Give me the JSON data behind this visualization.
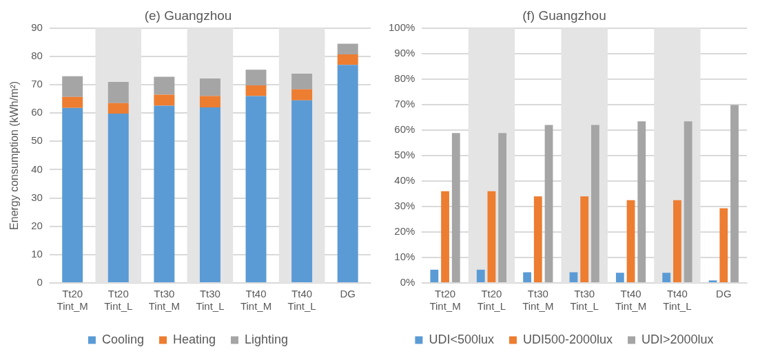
{
  "chart_data": [
    {
      "type": "bar",
      "title": "(e) Guangzhou",
      "ylabel": "Energy consumption (kWh/m²)",
      "stacked": true,
      "categories": [
        "Tt20 Tint_M",
        "Tt20 Tint_L",
        "Tt30 Tint_M",
        "Tt30 Tint_L",
        "Tt40 Tint_M",
        "Tt40 Tint_L",
        "DG"
      ],
      "series": [
        {
          "name": "Cooling",
          "color": "#5b9bd5",
          "values": [
            61.8,
            59.8,
            62.6,
            62.0,
            66.0,
            64.5,
            77.0
          ]
        },
        {
          "name": "Heating",
          "color": "#ed7d31",
          "values": [
            3.9,
            3.7,
            3.9,
            4.0,
            3.8,
            3.9,
            3.7
          ]
        },
        {
          "name": "Lighting",
          "color": "#a5a5a5",
          "values": [
            7.3,
            7.5,
            6.3,
            6.2,
            5.5,
            5.5,
            3.8
          ]
        }
      ],
      "ylim": [
        0,
        90
      ],
      "yticks": [
        0,
        10,
        20,
        30,
        40,
        50,
        60,
        70,
        80,
        90
      ],
      "grid": "y",
      "legend": "bottom",
      "bands": [
        {
          "axis": "x",
          "from": "Tt20 Tint_L",
          "to": "Tt20 Tint_L",
          "color": "#e4e4e4"
        },
        {
          "axis": "x",
          "from": "Tt30 Tint_L",
          "to": "Tt30 Tint_L",
          "color": "#e4e4e4"
        },
        {
          "axis": "x",
          "from": "Tt40 Tint_L",
          "to": "Tt40 Tint_L",
          "color": "#e4e4e4"
        }
      ]
    },
    {
      "type": "bar",
      "title": "(f) Guangzhou",
      "categories": [
        "Tt20 Tint_M",
        "Tt20 Tint_L",
        "Tt30 Tint_M",
        "Tt30 Tint_L",
        "Tt40 Tint_M",
        "Tt40 Tint_L",
        "DG"
      ],
      "series": [
        {
          "name": "UDI<500lux",
          "color": "#5b9bd5",
          "values": [
            5.2,
            5.2,
            4.2,
            4.2,
            4.0,
            4.0,
            1.0
          ]
        },
        {
          "name": "UDI500-2000lux",
          "color": "#ed7d31",
          "values": [
            36,
            36,
            34,
            34,
            32.5,
            32.5,
            29.3
          ]
        },
        {
          "name": "UDI>2000lux",
          "color": "#a5a5a5",
          "values": [
            58.8,
            58.8,
            62,
            62,
            63.4,
            63.4,
            69.8
          ]
        }
      ],
      "ylim": [
        0,
        100
      ],
      "yticks": [
        {
          "value": 0,
          "label": "0%"
        },
        {
          "value": 10,
          "label": "10%"
        },
        {
          "value": 20,
          "label": "20%"
        },
        {
          "value": 30,
          "label": "30%"
        },
        {
          "value": 40,
          "label": "40%"
        },
        {
          "value": 50,
          "label": "50%"
        },
        {
          "value": 60,
          "label": "60%"
        },
        {
          "value": 70,
          "label": "70%"
        },
        {
          "value": 80,
          "label": "80%"
        },
        {
          "value": 90,
          "label": "90%"
        },
        {
          "value": 100,
          "label": "100%"
        }
      ],
      "grid": "y",
      "legend": "bottom",
      "bands": [
        {
          "axis": "x",
          "from": "Tt20 Tint_L",
          "to": "Tt20 Tint_L",
          "color": "#e4e4e4"
        },
        {
          "axis": "x",
          "from": "Tt30 Tint_L",
          "to": "Tt30 Tint_L",
          "color": "#e4e4e4"
        },
        {
          "axis": "x",
          "from": "Tt40 Tint_L",
          "to": "Tt40 Tint_L",
          "color": "#e4e4e4"
        }
      ]
    }
  ]
}
